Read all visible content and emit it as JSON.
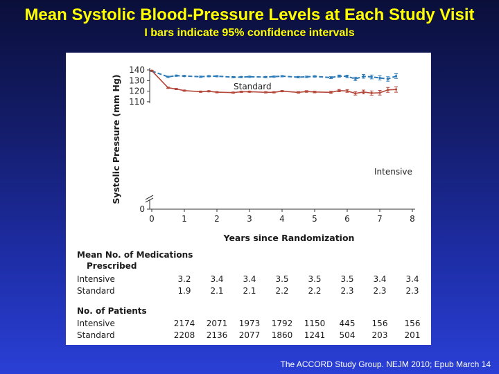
{
  "slide": {
    "title": "Mean Systolic Blood-Pressure Levels at Each Study Visit",
    "subtitle": "I bars indicate 95% confidence intervals",
    "citation": "The ACCORD Study Group. NEJM 2010; Epub March 14"
  },
  "chart_data": {
    "type": "line",
    "xlabel": "Years since Randomization",
    "ylabel": "Systolic Pressure (mm Hg)",
    "xlim": [
      0,
      8
    ],
    "ylim_display": [
      0,
      140
    ],
    "axis_break": true,
    "x_ticks": [
      "0",
      "1",
      "2",
      "3",
      "4",
      "5",
      "6",
      "7",
      "8"
    ],
    "y_ticks": [
      "140",
      "130",
      "120",
      "110",
      "0"
    ],
    "grid": false,
    "series": [
      {
        "name": "Standard",
        "color": "#2b7ab8",
        "dashed": true,
        "points": [
          {
            "x": 0.0,
            "y": 139.0,
            "ci": 0.4
          },
          {
            "x": 0.5,
            "y": 133.5,
            "ci": 0.6
          },
          {
            "x": 0.75,
            "y": 134.6,
            "ci": 0.6
          },
          {
            "x": 1.0,
            "y": 134.3,
            "ci": 0.6
          },
          {
            "x": 1.5,
            "y": 133.6,
            "ci": 0.6
          },
          {
            "x": 1.75,
            "y": 134.1,
            "ci": 0.6
          },
          {
            "x": 2.0,
            "y": 134.1,
            "ci": 0.6
          },
          {
            "x": 2.5,
            "y": 133.2,
            "ci": 0.6
          },
          {
            "x": 2.75,
            "y": 133.3,
            "ci": 0.6
          },
          {
            "x": 3.0,
            "y": 133.6,
            "ci": 0.6
          },
          {
            "x": 3.5,
            "y": 133.3,
            "ci": 0.6
          },
          {
            "x": 3.75,
            "y": 133.7,
            "ci": 0.6
          },
          {
            "x": 4.0,
            "y": 134.1,
            "ci": 0.6
          },
          {
            "x": 4.5,
            "y": 133.2,
            "ci": 0.7
          },
          {
            "x": 4.75,
            "y": 133.5,
            "ci": 0.7
          },
          {
            "x": 5.0,
            "y": 133.9,
            "ci": 0.7
          },
          {
            "x": 5.5,
            "y": 132.8,
            "ci": 0.9
          },
          {
            "x": 5.75,
            "y": 134.2,
            "ci": 1.0
          },
          {
            "x": 6.0,
            "y": 133.9,
            "ci": 1.2
          },
          {
            "x": 6.25,
            "y": 131.6,
            "ci": 1.6
          },
          {
            "x": 6.5,
            "y": 134.0,
            "ci": 1.8
          },
          {
            "x": 6.75,
            "y": 133.4,
            "ci": 1.8
          },
          {
            "x": 7.0,
            "y": 132.5,
            "ci": 2.0
          },
          {
            "x": 7.25,
            "y": 131.5,
            "ci": 2.1
          },
          {
            "x": 7.5,
            "y": 134.2,
            "ci": 2.2
          }
        ]
      },
      {
        "name": "Intensive",
        "color": "#b5483a",
        "dashed": false,
        "points": [
          {
            "x": 0.0,
            "y": 139.3,
            "ci": 0.4
          },
          {
            "x": 0.5,
            "y": 123.2,
            "ci": 0.6
          },
          {
            "x": 0.75,
            "y": 122.0,
            "ci": 0.6
          },
          {
            "x": 1.0,
            "y": 120.5,
            "ci": 0.6
          },
          {
            "x": 1.5,
            "y": 119.5,
            "ci": 0.6
          },
          {
            "x": 1.75,
            "y": 119.9,
            "ci": 0.6
          },
          {
            "x": 2.0,
            "y": 119.0,
            "ci": 0.6
          },
          {
            "x": 2.5,
            "y": 118.6,
            "ci": 0.6
          },
          {
            "x": 2.75,
            "y": 119.4,
            "ci": 0.6
          },
          {
            "x": 3.0,
            "y": 119.5,
            "ci": 0.6
          },
          {
            "x": 3.5,
            "y": 118.9,
            "ci": 0.6
          },
          {
            "x": 3.75,
            "y": 118.9,
            "ci": 0.6
          },
          {
            "x": 4.0,
            "y": 120.0,
            "ci": 0.6
          },
          {
            "x": 4.5,
            "y": 118.8,
            "ci": 0.8
          },
          {
            "x": 4.75,
            "y": 119.7,
            "ci": 0.8
          },
          {
            "x": 5.0,
            "y": 119.2,
            "ci": 0.8
          },
          {
            "x": 5.5,
            "y": 118.9,
            "ci": 1.0
          },
          {
            "x": 5.75,
            "y": 120.5,
            "ci": 1.1
          },
          {
            "x": 6.0,
            "y": 120.2,
            "ci": 1.3
          },
          {
            "x": 6.25,
            "y": 117.9,
            "ci": 1.6
          },
          {
            "x": 6.5,
            "y": 119.2,
            "ci": 1.8
          },
          {
            "x": 6.75,
            "y": 118.2,
            "ci": 2.0
          },
          {
            "x": 7.0,
            "y": 118.5,
            "ci": 2.2
          },
          {
            "x": 7.25,
            "y": 121.2,
            "ci": 2.3
          },
          {
            "x": 7.5,
            "y": 121.6,
            "ci": 2.6
          }
        ]
      }
    ],
    "annotations": [
      "Standard",
      "Intensive"
    ]
  },
  "table": {
    "medications": {
      "title_line1": "Mean No. of Medications",
      "title_line2": "Prescribed",
      "rows": [
        {
          "label": "Intensive",
          "values": [
            "3.2",
            "3.4",
            "3.4",
            "3.5",
            "3.5",
            "3.5",
            "3.4",
            "3.4"
          ]
        },
        {
          "label": "Standard",
          "values": [
            "1.9",
            "2.1",
            "2.1",
            "2.2",
            "2.2",
            "2.3",
            "2.3",
            "2.3"
          ]
        }
      ]
    },
    "patients": {
      "title": "No. of Patients",
      "rows": [
        {
          "label": "Intensive",
          "values": [
            "2174",
            "2071",
            "1973",
            "1792",
            "1150",
            "445",
            "156",
            "156"
          ]
        },
        {
          "label": "Standard",
          "values": [
            "2208",
            "2136",
            "2077",
            "1860",
            "1241",
            "504",
            "203",
            "201"
          ]
        }
      ]
    }
  }
}
